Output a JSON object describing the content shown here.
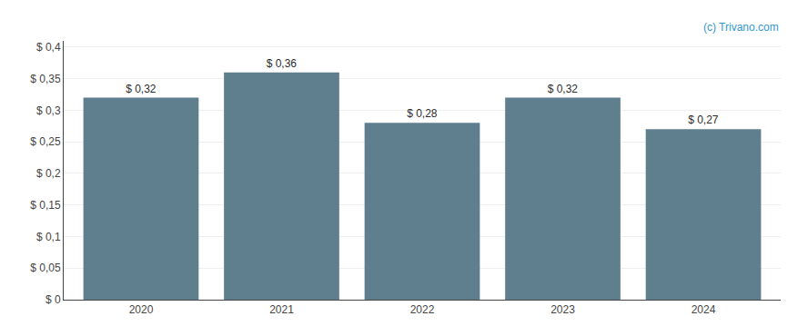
{
  "chart_data": {
    "type": "bar",
    "categories": [
      "2020",
      "2021",
      "2022",
      "2023",
      "2024"
    ],
    "values": [
      0.32,
      0.36,
      0.28,
      0.32,
      0.27
    ],
    "value_labels": [
      "$ 0,32",
      "$ 0,36",
      "$ 0,28",
      "$ 0,32",
      "$ 0,27"
    ],
    "data_labels": true,
    "color": "#5f7f8e",
    "ylim": [
      0,
      0.41
    ],
    "yticks": [
      {
        "value": 0,
        "label": "$ 0"
      },
      {
        "value": 0.05,
        "label": "$ 0,05"
      },
      {
        "value": 0.1,
        "label": "$ 0,1"
      },
      {
        "value": 0.15,
        "label": "$ 0,15"
      },
      {
        "value": 0.2,
        "label": "$ 0,2"
      },
      {
        "value": 0.25,
        "label": "$ 0,25"
      },
      {
        "value": 0.3,
        "label": "$ 0,3"
      },
      {
        "value": 0.35,
        "label": "$ 0,35"
      },
      {
        "value": 0.4,
        "label": "$ 0,4"
      }
    ],
    "grid": true,
    "annotations": [
      "(c) Trivano.com"
    ]
  }
}
